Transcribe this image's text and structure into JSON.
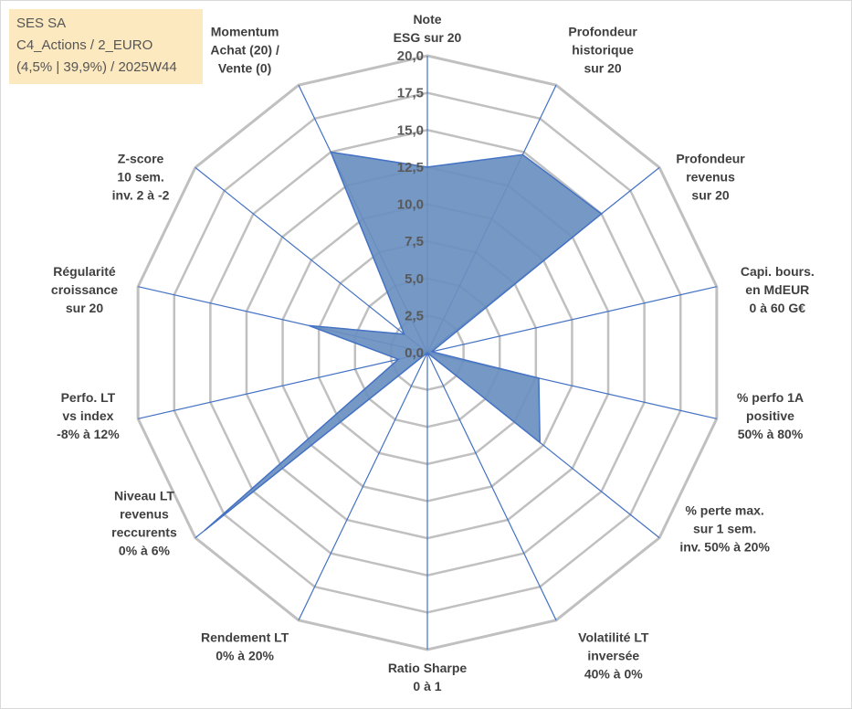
{
  "info": {
    "line1": "SES SA",
    "line2": "C4_Actions / 2_EURO",
    "line3": "(4,5% | 39,9%) / 2025W44"
  },
  "colors": {
    "fill": "#6a8fbf",
    "stroke": "#4472c4",
    "grid": "#c0c0c0",
    "spoke": "#4472c4",
    "info_bg": "#fde9bf"
  },
  "chart_data": {
    "type": "radar",
    "title": "",
    "rmax": 20,
    "ticks": [
      "0,0",
      "2,5",
      "5,0",
      "7,5",
      "10,0",
      "12,5",
      "15,0",
      "17,5",
      "20,0"
    ],
    "axes": [
      {
        "lines": [
          "Note",
          "ESG sur 20"
        ],
        "value": 12.5
      },
      {
        "lines": [
          "Profondeur",
          "historique",
          "sur 20"
        ],
        "value": 14.8
      },
      {
        "lines": [
          "Profondeur",
          "revenus",
          "sur 20"
        ],
        "value": 15.0
      },
      {
        "lines": [
          "Capi. bours.",
          "en MdEUR",
          "0 à 60 G€"
        ],
        "value": 0.3
      },
      {
        "lines": [
          "% perfo 1A",
          "positive",
          "50% à 80%"
        ],
        "value": 7.7
      },
      {
        "lines": [
          "% perte max.",
          "sur 1 sem.",
          "inv. 50% à 20%"
        ],
        "value": 9.7
      },
      {
        "lines": [
          "Volatilité LT",
          "inversée",
          "40% à 0%"
        ],
        "value": 0.0
      },
      {
        "lines": [
          "Ratio Sharpe",
          "0 à 1"
        ],
        "value": 0.0
      },
      {
        "lines": [
          "Rendement LT",
          "0% à 20%"
        ],
        "value": 0.0
      },
      {
        "lines": [
          "Niveau LT",
          "revenus",
          "reccurents",
          "0% à 6%"
        ],
        "value": 19.2
      },
      {
        "lines": [
          "Perfo. LT",
          "vs index",
          "-8% à 12%"
        ],
        "value": 2.0
      },
      {
        "lines": [
          "Régularité",
          "croissance",
          "sur 20"
        ],
        "value": 8.2
      },
      {
        "lines": [
          "Z-score",
          "10 sem.",
          "inv. 2 à -2"
        ],
        "value": 2.0
      },
      {
        "lines": [
          "Momentum",
          "Achat (20) /",
          "Vente (0)"
        ],
        "value": 15.0
      }
    ]
  }
}
